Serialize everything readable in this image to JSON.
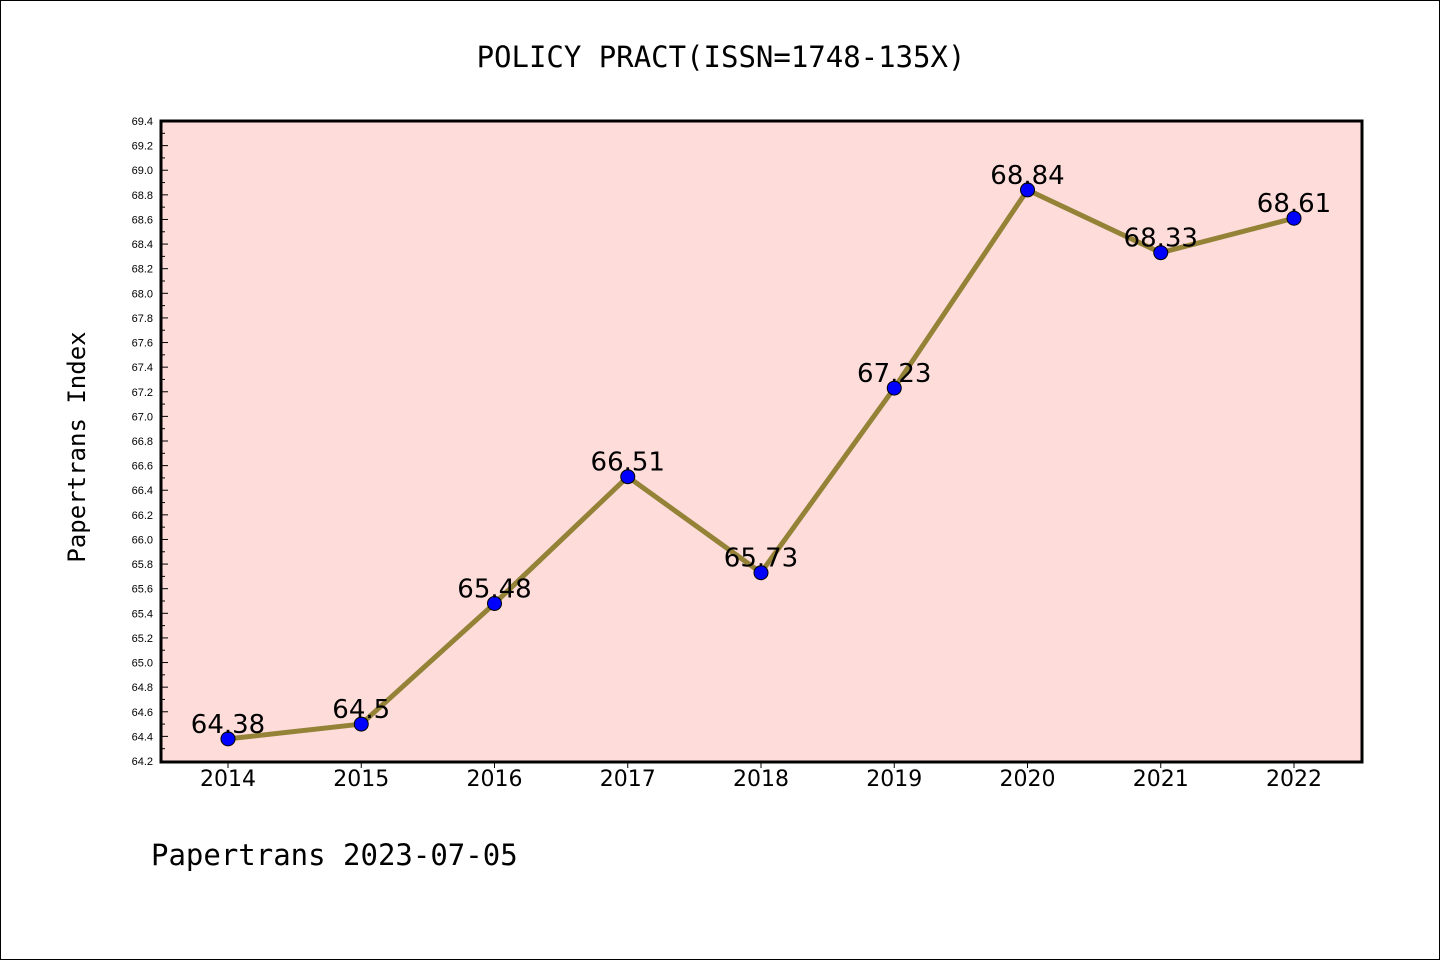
{
  "footer_text": "Papertrans 2023-07-05",
  "colors": {
    "plot_background": "#fddcda",
    "line": "#948237",
    "marker": "#0000ff"
  },
  "chart_data": {
    "type": "line",
    "title": "POLICY PRACT(ISSN=1748-135X)",
    "xlabel": "",
    "ylabel": "Papertrans Index",
    "ylim": [
      64.2,
      69.4
    ],
    "ytick_step": 0.2,
    "categories": [
      "2014",
      "2015",
      "2016",
      "2017",
      "2018",
      "2019",
      "2020",
      "2021",
      "2022"
    ],
    "values": [
      64.38,
      64.5,
      65.48,
      66.51,
      65.73,
      67.23,
      68.84,
      68.33,
      68.61
    ],
    "data_labels": [
      "64.38",
      "64.5",
      "65.48",
      "66.51",
      "65.73",
      "67.23",
      "68.84",
      "68.33",
      "68.61"
    ],
    "grid": false,
    "legend": "none"
  }
}
